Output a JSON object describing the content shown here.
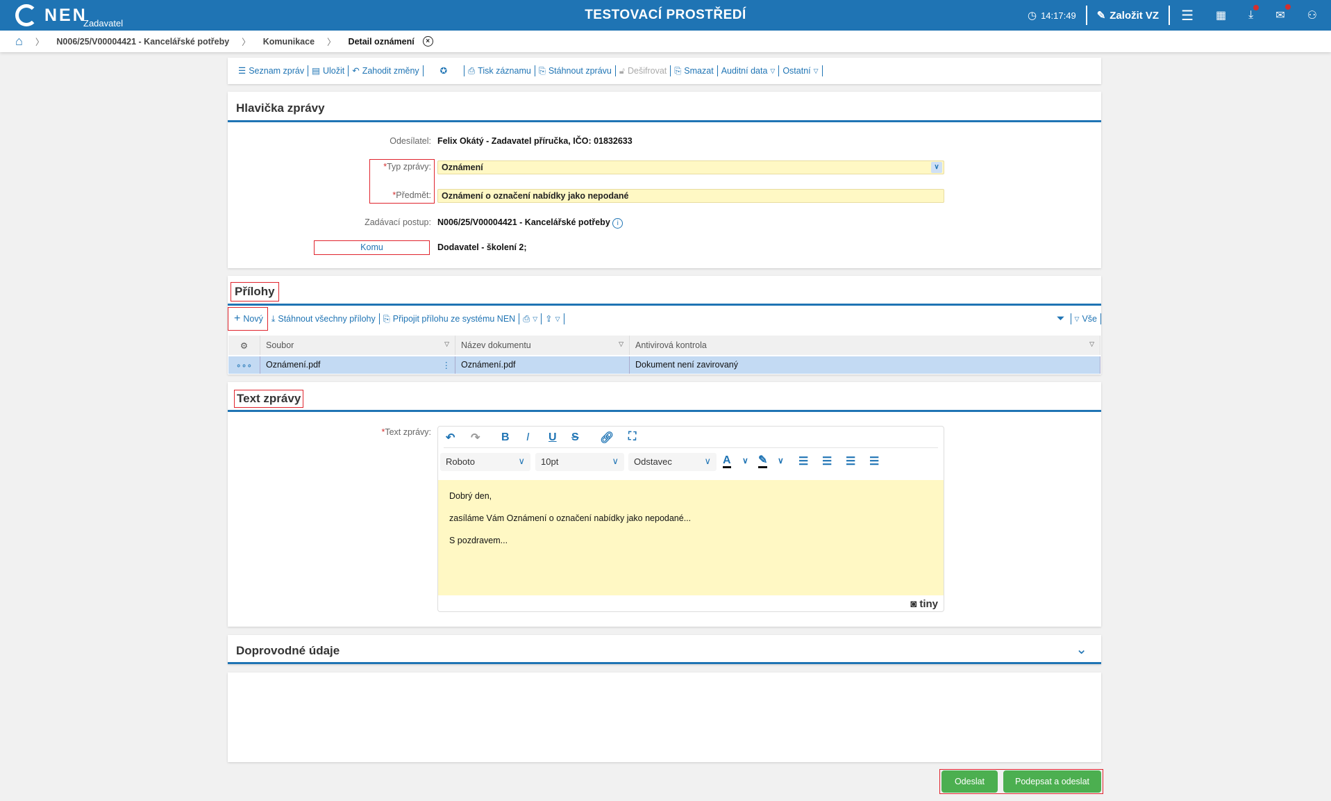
{
  "header": {
    "logo": "NEN",
    "logo_sub": "Zadavatel",
    "env_title": "TESTOVACÍ PROSTŘEDÍ",
    "time": "14:17:49",
    "create_label": "Založit VZ"
  },
  "breadcrumb": [
    "N006/25/V00004421 - Kancelářské potřeby",
    "Komunikace",
    "Detail oznámení"
  ],
  "toolbar": {
    "list": "Seznam zpráv",
    "save": "Uložit",
    "discard": "Zahodit změny",
    "print": "Tisk záznamu",
    "download": "Stáhnout zprávu",
    "decrypt": "Dešifrovat",
    "delete": "Smazat",
    "audit": "Auditní data",
    "other": "Ostatní"
  },
  "header_section": {
    "title": "Hlavička zprávy",
    "sender_label": "Odesílatel:",
    "sender": "Felix Okátý - Zadavatel příručka, IČO: 01832633",
    "type_label": "Typ zprávy:",
    "type_value": "Oznámení",
    "subject_label": "Předmět:",
    "subject_value": "Oznámení o označení nabídky jako nepodané",
    "procedure_label": "Zadávací postup:",
    "procedure": "N006/25/V00004421 - Kancelářské potřeby",
    "to_button": "Komu",
    "to_value": "Dodavatel - školení 2;"
  },
  "attachments": {
    "title": "Přílohy",
    "new": "Nový",
    "download_all": "Stáhnout všechny přílohy",
    "attach_nen": "Připojit přílohu ze systému NEN",
    "filter_all": "Vše",
    "columns": [
      "Soubor",
      "Název dokumentu",
      "Antivirová kontrola"
    ],
    "rows": [
      {
        "file": "Oznámení.pdf",
        "name": "Oznámení.pdf",
        "antivirus": "Dokument není zavirovaný"
      }
    ]
  },
  "text_section": {
    "title": "Text zprávy",
    "label": "Text zprávy:",
    "font": "Roboto",
    "size": "10pt",
    "block": "Odstavec",
    "lines": [
      "Dobrý den,",
      "zasíláme Vám Oznámení o označení nabídky jako nepodané...",
      "S pozdravem..."
    ],
    "brand": "tiny"
  },
  "extra": {
    "title": "Doprovodné údaje"
  },
  "actions": {
    "send": "Odeslat",
    "sign_send": "Podepsat a odeslat"
  },
  "colors": {
    "brand": "#1f74b4",
    "input_bg": "#fff8c4",
    "selected_row": "#c3daf3",
    "button": "#4caf50",
    "highlight": "#e0232c"
  }
}
